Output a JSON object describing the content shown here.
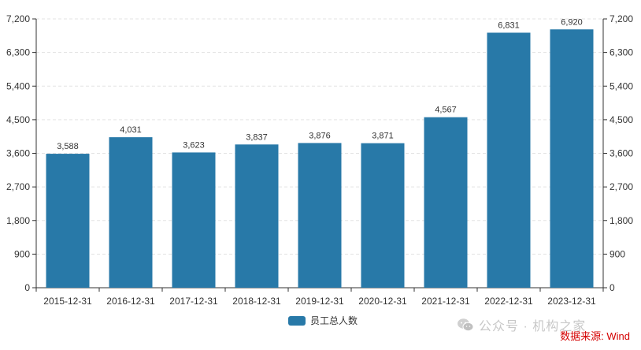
{
  "chart_data": {
    "type": "bar",
    "categories": [
      "2015-12-31",
      "2016-12-31",
      "2017-12-31",
      "2018-12-31",
      "2019-12-31",
      "2020-12-31",
      "2021-12-31",
      "2022-12-31",
      "2023-12-31"
    ],
    "series": [
      {
        "name": "员工总人数",
        "values": [
          3588,
          4031,
          3623,
          3837,
          3876,
          3871,
          4567,
          6831,
          6920
        ],
        "color": "#2879a8"
      }
    ],
    "data_labels": [
      "3,588",
      "4,031",
      "3,623",
      "3,837",
      "3,876",
      "3,871",
      "4,567",
      "6,831",
      "6,920"
    ],
    "y_ticks": [
      0,
      900,
      1800,
      2700,
      3600,
      4500,
      5400,
      6300,
      7200
    ],
    "y_tick_labels": [
      "0",
      "900",
      "1,800",
      "2,700",
      "3,600",
      "4,500",
      "5,400",
      "6,300",
      "7,200"
    ],
    "ylim": [
      0,
      7200
    ],
    "grid": true,
    "dual_y_axis": true,
    "legend_position": "bottom-center",
    "grid_color": "#e3e3e3",
    "axis_color": "#333333"
  },
  "legend": {
    "label": "员工总人数"
  },
  "watermark": {
    "text": "公众号 · 机构之家",
    "icon": "wechat-icon"
  },
  "source": {
    "text": "数据来源: Wind",
    "color": "#d40000"
  }
}
